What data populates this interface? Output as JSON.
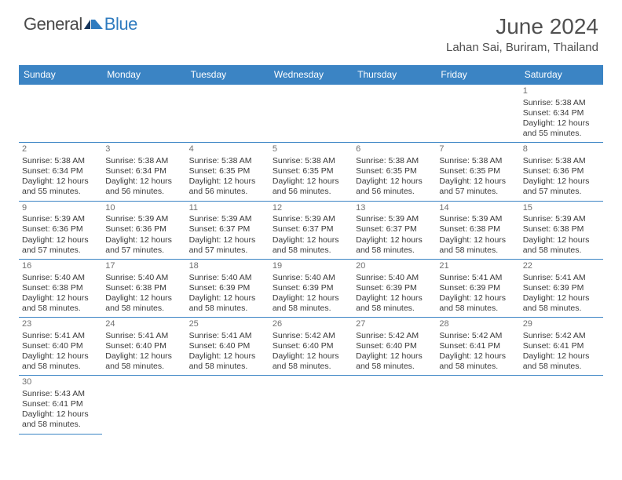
{
  "logo": {
    "text1": "General",
    "text2": "Blue"
  },
  "title": "June 2024",
  "location": "Lahan Sai, Buriram, Thailand",
  "colors": {
    "header_bg": "#3b84c4",
    "header_text": "#ffffff",
    "border": "#3b84c4",
    "daynum": "#707070",
    "body_text": "#3a3a3a",
    "title_text": "#505050",
    "logo_gray": "#4a4a4a",
    "logo_blue": "#2f7bbf",
    "page_bg": "#ffffff"
  },
  "weekdays": [
    "Sunday",
    "Monday",
    "Tuesday",
    "Wednesday",
    "Thursday",
    "Friday",
    "Saturday"
  ],
  "weeks": [
    [
      null,
      null,
      null,
      null,
      null,
      null,
      {
        "d": "1",
        "sr": "Sunrise: 5:38 AM",
        "ss": "Sunset: 6:34 PM",
        "dl1": "Daylight: 12 hours",
        "dl2": "and 55 minutes."
      }
    ],
    [
      {
        "d": "2",
        "sr": "Sunrise: 5:38 AM",
        "ss": "Sunset: 6:34 PM",
        "dl1": "Daylight: 12 hours",
        "dl2": "and 55 minutes."
      },
      {
        "d": "3",
        "sr": "Sunrise: 5:38 AM",
        "ss": "Sunset: 6:34 PM",
        "dl1": "Daylight: 12 hours",
        "dl2": "and 56 minutes."
      },
      {
        "d": "4",
        "sr": "Sunrise: 5:38 AM",
        "ss": "Sunset: 6:35 PM",
        "dl1": "Daylight: 12 hours",
        "dl2": "and 56 minutes."
      },
      {
        "d": "5",
        "sr": "Sunrise: 5:38 AM",
        "ss": "Sunset: 6:35 PM",
        "dl1": "Daylight: 12 hours",
        "dl2": "and 56 minutes."
      },
      {
        "d": "6",
        "sr": "Sunrise: 5:38 AM",
        "ss": "Sunset: 6:35 PM",
        "dl1": "Daylight: 12 hours",
        "dl2": "and 56 minutes."
      },
      {
        "d": "7",
        "sr": "Sunrise: 5:38 AM",
        "ss": "Sunset: 6:35 PM",
        "dl1": "Daylight: 12 hours",
        "dl2": "and 57 minutes."
      },
      {
        "d": "8",
        "sr": "Sunrise: 5:38 AM",
        "ss": "Sunset: 6:36 PM",
        "dl1": "Daylight: 12 hours",
        "dl2": "and 57 minutes."
      }
    ],
    [
      {
        "d": "9",
        "sr": "Sunrise: 5:39 AM",
        "ss": "Sunset: 6:36 PM",
        "dl1": "Daylight: 12 hours",
        "dl2": "and 57 minutes."
      },
      {
        "d": "10",
        "sr": "Sunrise: 5:39 AM",
        "ss": "Sunset: 6:36 PM",
        "dl1": "Daylight: 12 hours",
        "dl2": "and 57 minutes."
      },
      {
        "d": "11",
        "sr": "Sunrise: 5:39 AM",
        "ss": "Sunset: 6:37 PM",
        "dl1": "Daylight: 12 hours",
        "dl2": "and 57 minutes."
      },
      {
        "d": "12",
        "sr": "Sunrise: 5:39 AM",
        "ss": "Sunset: 6:37 PM",
        "dl1": "Daylight: 12 hours",
        "dl2": "and 58 minutes."
      },
      {
        "d": "13",
        "sr": "Sunrise: 5:39 AM",
        "ss": "Sunset: 6:37 PM",
        "dl1": "Daylight: 12 hours",
        "dl2": "and 58 minutes."
      },
      {
        "d": "14",
        "sr": "Sunrise: 5:39 AM",
        "ss": "Sunset: 6:38 PM",
        "dl1": "Daylight: 12 hours",
        "dl2": "and 58 minutes."
      },
      {
        "d": "15",
        "sr": "Sunrise: 5:39 AM",
        "ss": "Sunset: 6:38 PM",
        "dl1": "Daylight: 12 hours",
        "dl2": "and 58 minutes."
      }
    ],
    [
      {
        "d": "16",
        "sr": "Sunrise: 5:40 AM",
        "ss": "Sunset: 6:38 PM",
        "dl1": "Daylight: 12 hours",
        "dl2": "and 58 minutes."
      },
      {
        "d": "17",
        "sr": "Sunrise: 5:40 AM",
        "ss": "Sunset: 6:38 PM",
        "dl1": "Daylight: 12 hours",
        "dl2": "and 58 minutes."
      },
      {
        "d": "18",
        "sr": "Sunrise: 5:40 AM",
        "ss": "Sunset: 6:39 PM",
        "dl1": "Daylight: 12 hours",
        "dl2": "and 58 minutes."
      },
      {
        "d": "19",
        "sr": "Sunrise: 5:40 AM",
        "ss": "Sunset: 6:39 PM",
        "dl1": "Daylight: 12 hours",
        "dl2": "and 58 minutes."
      },
      {
        "d": "20",
        "sr": "Sunrise: 5:40 AM",
        "ss": "Sunset: 6:39 PM",
        "dl1": "Daylight: 12 hours",
        "dl2": "and 58 minutes."
      },
      {
        "d": "21",
        "sr": "Sunrise: 5:41 AM",
        "ss": "Sunset: 6:39 PM",
        "dl1": "Daylight: 12 hours",
        "dl2": "and 58 minutes."
      },
      {
        "d": "22",
        "sr": "Sunrise: 5:41 AM",
        "ss": "Sunset: 6:39 PM",
        "dl1": "Daylight: 12 hours",
        "dl2": "and 58 minutes."
      }
    ],
    [
      {
        "d": "23",
        "sr": "Sunrise: 5:41 AM",
        "ss": "Sunset: 6:40 PM",
        "dl1": "Daylight: 12 hours",
        "dl2": "and 58 minutes."
      },
      {
        "d": "24",
        "sr": "Sunrise: 5:41 AM",
        "ss": "Sunset: 6:40 PM",
        "dl1": "Daylight: 12 hours",
        "dl2": "and 58 minutes."
      },
      {
        "d": "25",
        "sr": "Sunrise: 5:41 AM",
        "ss": "Sunset: 6:40 PM",
        "dl1": "Daylight: 12 hours",
        "dl2": "and 58 minutes."
      },
      {
        "d": "26",
        "sr": "Sunrise: 5:42 AM",
        "ss": "Sunset: 6:40 PM",
        "dl1": "Daylight: 12 hours",
        "dl2": "and 58 minutes."
      },
      {
        "d": "27",
        "sr": "Sunrise: 5:42 AM",
        "ss": "Sunset: 6:40 PM",
        "dl1": "Daylight: 12 hours",
        "dl2": "and 58 minutes."
      },
      {
        "d": "28",
        "sr": "Sunrise: 5:42 AM",
        "ss": "Sunset: 6:41 PM",
        "dl1": "Daylight: 12 hours",
        "dl2": "and 58 minutes."
      },
      {
        "d": "29",
        "sr": "Sunrise: 5:42 AM",
        "ss": "Sunset: 6:41 PM",
        "dl1": "Daylight: 12 hours",
        "dl2": "and 58 minutes."
      }
    ],
    [
      {
        "d": "30",
        "sr": "Sunrise: 5:43 AM",
        "ss": "Sunset: 6:41 PM",
        "dl1": "Daylight: 12 hours",
        "dl2": "and 58 minutes."
      },
      null,
      null,
      null,
      null,
      null,
      null
    ]
  ]
}
